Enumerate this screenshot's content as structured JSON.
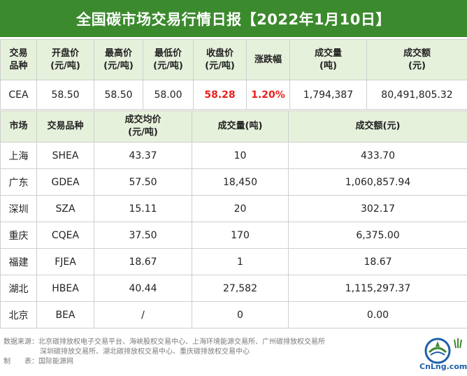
{
  "title": "全国碳市场交易行情日报【2022年1月10日】",
  "summary": {
    "headers": [
      [
        "交易",
        "品种"
      ],
      [
        "开盘价",
        "(元/吨)"
      ],
      [
        "最高价",
        "(元/吨)"
      ],
      [
        "最低价",
        "(元/吨)"
      ],
      [
        "收盘价",
        "(元/吨)"
      ],
      [
        "涨跌幅",
        ""
      ],
      [
        "成交量",
        "(吨)"
      ],
      [
        "成交额",
        "(元)"
      ]
    ],
    "row": [
      "CEA",
      "58.50",
      "58.50",
      "58.00",
      "58.28",
      "1.20%",
      "1,794,387",
      "80,491,805.32"
    ]
  },
  "regional": {
    "headers": [
      [
        "市场",
        ""
      ],
      [
        "交易品种",
        ""
      ],
      [
        "成交均价",
        "(元/吨)"
      ],
      [
        "成交量(吨)",
        ""
      ],
      [
        "成交额(元)",
        ""
      ]
    ],
    "rows": [
      [
        "上海",
        "SHEA",
        "43.37",
        "10",
        "433.70"
      ],
      [
        "广东",
        "GDEA",
        "57.50",
        "18,450",
        "1,060,857.94"
      ],
      [
        "深圳",
        "SZA",
        "15.11",
        "20",
        "302.17"
      ],
      [
        "重庆",
        "CQEA",
        "37.50",
        "170",
        "6,375.00"
      ],
      [
        "福建",
        "FJEA",
        "18.67",
        "1",
        "18.67"
      ],
      [
        "湖北",
        "HBEA",
        "40.44",
        "27,582",
        "1,115,297.37"
      ],
      [
        "北京",
        "BEA",
        "/",
        "0",
        "0.00"
      ]
    ]
  },
  "footer": {
    "source_line1": "数据来源：北京碳排放权电子交易平台、海峡股权交易中心、上海环境能源交易所、广州碳排放权交易所",
    "source_line2": "深圳碳排放交易所、湖北碳排放权交易中心、重庆碳排放权交易中心",
    "maker": "制　　表：国际能源网"
  },
  "logo": {
    "text": "CnLng.com",
    "accent": "#1d5fa8"
  },
  "colors": {
    "header_bg": "#3c8a2e",
    "subheader_bg": "#e6f1dc",
    "highlight": "#e8201d"
  }
}
